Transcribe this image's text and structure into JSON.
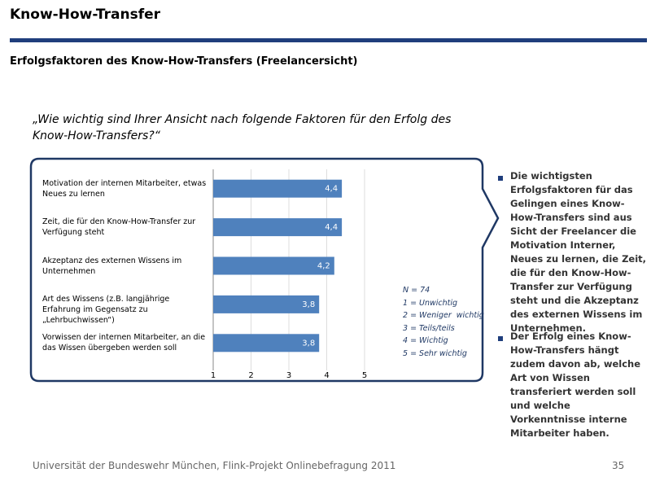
{
  "header": {
    "title": "Know-How-Transfer",
    "subtitle": "Erfolgsfaktoren des Know-How-Transfers (Freelancersicht)"
  },
  "question": "„Wie wichtig sind Ihrer Ansicht nach folgende Faktoren für den Erfolg des Know-How-Transfers?“",
  "chart_data": {
    "type": "hbar",
    "categories": [
      "Motivation der internen Mitarbeiter, etwas Neues zu lernen",
      "Zeit, die für den Know-How-Transfer zur Verfügung steht",
      "Akzeptanz des externen Wissens im Unternehmen",
      "Art des Wissens (z.B. langjährige Erfahrung im Gegensatz zu „Lehrbuchwissen“)",
      "Vorwissen der internen Mitarbeiter, an die das Wissen übergeben werden soll"
    ],
    "values": [
      4.4,
      4.4,
      4.2,
      3.8,
      3.8
    ],
    "value_labels": [
      "4,4",
      "4,4",
      "4,2",
      "3,8",
      "3,8"
    ],
    "color": "#4f81bd",
    "xlim": [
      1,
      5
    ],
    "xticks": [
      1,
      2,
      3,
      4,
      5
    ],
    "grid": true,
    "legend": [
      "N = 74",
      "1 = Unwichtig",
      "2 = Weniger  wichtig",
      "3 = Teils/teils",
      "4 = Wichtig",
      "5 = Sehr wichtig"
    ]
  },
  "notes": [
    "Die wichtigsten Erfolgsfaktoren für das Gelingen eines Know-How-Transfers sind aus Sicht der Freelancer die Motivation Interner, Neues zu lernen, die Zeit, die für den Know-How-Transfer zur Verfügung steht und die Akzeptanz des externen Wissens im Unternehmen.",
    "Der Erfolg eines Know-How-Transfers hängt zudem davon ab, welche Art von Wissen transferiert werden soll und welche Vorkenntnisse interne Mitarbeiter haben."
  ],
  "footer": {
    "source": "Universität der Bundeswehr München, Flink-Projekt Onlinebefragung  2011",
    "page": "35"
  }
}
